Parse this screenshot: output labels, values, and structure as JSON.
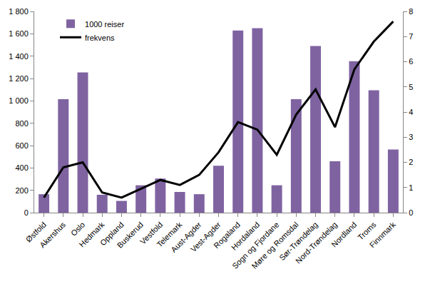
{
  "chart_data": {
    "type": "bar",
    "categories": [
      "Østfold",
      "Akershus",
      "Oslo",
      "Hedmark",
      "Oppland",
      "Buskerud",
      "Vestfold",
      "Telemark",
      "Aust-Agder",
      "Vest-Agder",
      "Rogaland",
      "Hordaland",
      "Sogn og Fjordane",
      "Møre og Romsdal",
      "Sør-Trøndelag",
      "Nord-Trøndelag",
      "Nordland",
      "Troms",
      "Finnmark"
    ],
    "series": [
      {
        "name": "1000 reiser",
        "type": "bar",
        "color": "#7f63a1",
        "values": [
          165,
          1015,
          1255,
          160,
          105,
          245,
          305,
          185,
          165,
          420,
          1630,
          1650,
          245,
          1015,
          1490,
          460,
          1355,
          1095,
          565
        ]
      },
      {
        "name": "frekvens",
        "type": "line",
        "axis": "y2",
        "color": "#000000",
        "values": [
          0.6,
          1.8,
          2.0,
          0.8,
          0.6,
          0.95,
          1.3,
          1.1,
          1.5,
          2.4,
          3.6,
          3.3,
          2.3,
          3.9,
          4.9,
          3.4,
          5.7,
          6.8,
          7.6
        ]
      }
    ],
    "ylim": [
      0,
      1800
    ],
    "yticks": [
      0,
      200,
      400,
      600,
      800,
      {
        "value": 1000,
        "label": "1 000"
      },
      {
        "value": 1200,
        "label": "1 200"
      },
      {
        "value": 1400,
        "label": "1 400"
      },
      {
        "value": 1600,
        "label": "1 600"
      },
      {
        "value": 1800,
        "label": "1 800"
      }
    ],
    "y2lim": [
      0,
      8
    ],
    "y2ticks": [
      0,
      1,
      2,
      3,
      4,
      5,
      6,
      7,
      8
    ],
    "legend": "upper left",
    "grid": false
  }
}
